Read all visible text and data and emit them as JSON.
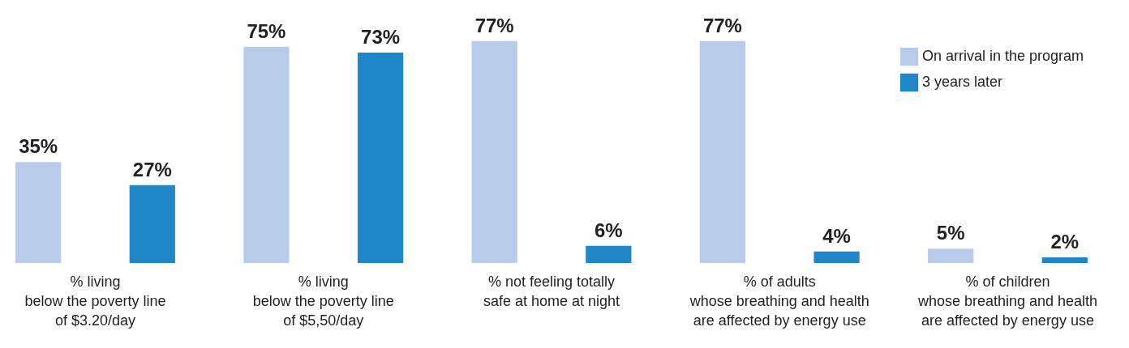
{
  "chart_data": {
    "type": "bar",
    "categories": [
      "% living\nbelow the poverty line\nof $3.20/day",
      "% living\nbelow the poverty line\nof $5,50/day",
      "% not feeling totally\nsafe at home at night",
      "% of adults\nwhose breathing and health\nare affected by energy use",
      "% of children\nwhose breathing and health\nare affected by energy use"
    ],
    "series": [
      {
        "name": "On arrival in the program",
        "color": "#b8cce9",
        "values": [
          35,
          75,
          77,
          77,
          5
        ],
        "value_labels": [
          "35%",
          "75%",
          "77%",
          "77%",
          "5%"
        ]
      },
      {
        "name": "3 years later",
        "color": "#1f87c8",
        "values": [
          27,
          73,
          6,
          4,
          2
        ],
        "value_labels": [
          "27%",
          "73%",
          "6%",
          "4%",
          "2%"
        ]
      }
    ],
    "legend": "top right",
    "grid": false
  }
}
